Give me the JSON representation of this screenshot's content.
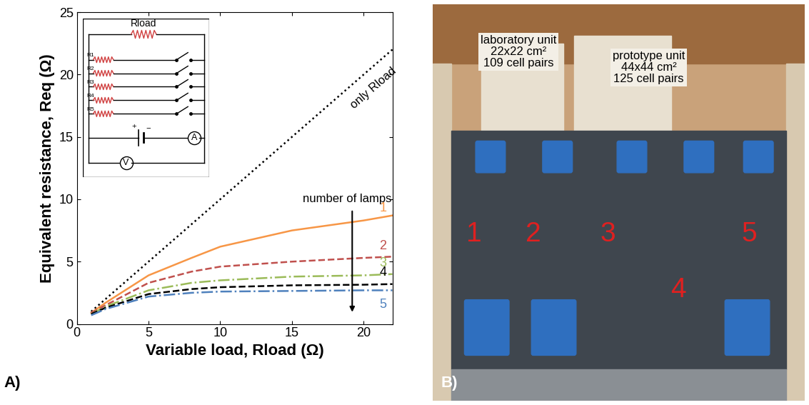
{
  "chart_data": {
    "type": "line",
    "x_label": "Variable load, Rload (Ω)",
    "y_label": "Equivalent resistance, Req (Ω)",
    "x": [
      1,
      2,
      5,
      8,
      10,
      15,
      20,
      22
    ],
    "series": [
      {
        "name": "only Rload",
        "color": "#000000",
        "line_style": "dotted",
        "values": [
          1,
          2,
          5,
          8,
          10,
          15,
          20,
          22
        ]
      },
      {
        "name": "1",
        "color": "#f79646",
        "line_style": "solid",
        "values": [
          0.9,
          1.7,
          3.9,
          5.3,
          6.2,
          7.5,
          8.3,
          8.7
        ]
      },
      {
        "name": "2",
        "color": "#c0504d",
        "line_style": "dashed",
        "values": [
          0.9,
          1.5,
          3.3,
          4.2,
          4.6,
          5.0,
          5.3,
          5.4
        ]
      },
      {
        "name": "3",
        "color": "#9bbb59",
        "line_style": "dashdot",
        "values": [
          0.8,
          1.4,
          2.7,
          3.3,
          3.5,
          3.8,
          3.9,
          4.0
        ]
      },
      {
        "name": "4",
        "color": "#000000",
        "line_style": "dashed",
        "values": [
          0.8,
          1.3,
          2.4,
          2.8,
          2.95,
          3.1,
          3.15,
          3.2
        ]
      },
      {
        "name": "5",
        "color": "#4f81bd",
        "line_style": "dashdot",
        "values": [
          0.7,
          1.2,
          2.2,
          2.5,
          2.6,
          2.65,
          2.7,
          2.7
        ]
      }
    ],
    "annotations": [
      "number of lamps"
    ],
    "xlim": [
      0,
      22
    ],
    "xticks": [
      0,
      5,
      10,
      15,
      20
    ],
    "ylim": [
      0,
      25
    ],
    "yticks": [
      0,
      5,
      10,
      15,
      20,
      25
    ],
    "grid": false
  },
  "panels": [
    "A)",
    "B)"
  ],
  "inset": {
    "load": "Rload",
    "resistors": [
      "R1",
      "R2",
      "R3",
      "R4",
      "R5"
    ],
    "plus": "+",
    "minus": "−",
    "ammeter": "A",
    "voltmeter": "V"
  },
  "photo": {
    "units": [
      [
        "laboratory unit",
        "22x22 cm²",
        "109 cell pairs"
      ],
      [
        "prototype unit",
        "44x44 cm²",
        "125 cell pairs"
      ]
    ],
    "numbers": [
      "1",
      "2",
      "3",
      "4",
      "5"
    ]
  }
}
